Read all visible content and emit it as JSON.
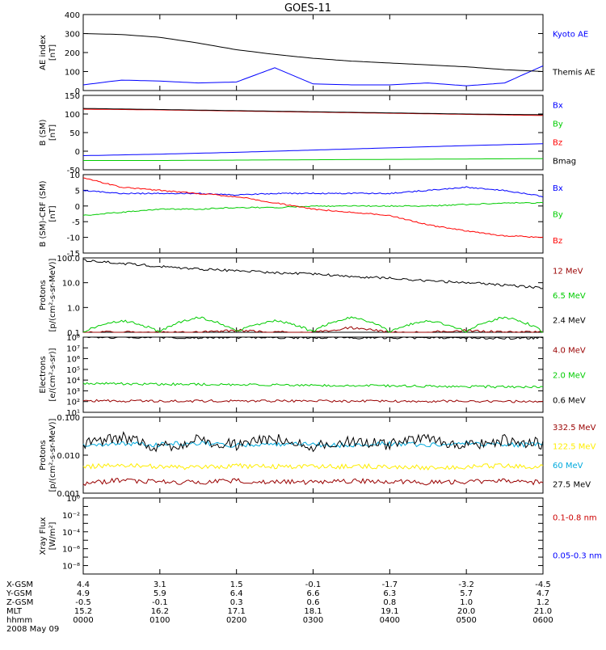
{
  "title": "GOES-11",
  "colors": {
    "black": "#000000",
    "blue": "#0000ff",
    "green": "#00cc00",
    "red": "#ff0000",
    "darkred": "#990000",
    "yellow": "#ffee00",
    "cyan": "#00aadd"
  },
  "chart_data": [
    {
      "type": "line",
      "id": "ae",
      "ylabel": [
        "AE index",
        "[nT]"
      ],
      "ylim": [
        0,
        400
      ],
      "yticks": [
        0,
        100,
        200,
        300,
        400
      ],
      "yscale": "linear",
      "x": [
        "0000",
        "0030",
        "0100",
        "0130",
        "0200",
        "0230",
        "0300",
        "0330",
        "0400",
        "0430",
        "0500",
        "0530",
        "0600"
      ],
      "series": [
        {
          "name": "Kyoto AE",
          "color": "#0000ff",
          "values": [
            30,
            55,
            50,
            40,
            45,
            120,
            35,
            30,
            30,
            40,
            25,
            40,
            130
          ]
        },
        {
          "name": "Themis AE",
          "color": "#000000",
          "values": [
            300,
            295,
            280,
            250,
            215,
            190,
            170,
            155,
            145,
            135,
            125,
            110,
            100
          ]
        }
      ]
    },
    {
      "type": "line",
      "id": "b",
      "ylabel": [
        "B (SM)",
        "[nT]"
      ],
      "ylim": [
        -50,
        150
      ],
      "yticks": [
        -50,
        0,
        50,
        100,
        150
      ],
      "yscale": "linear",
      "x": [
        "0000",
        "0100",
        "0200",
        "0300",
        "0400",
        "0500",
        "0600"
      ],
      "series": [
        {
          "name": "Bx",
          "color": "#0000ff",
          "values": [
            -12,
            -8,
            -3,
            3,
            9,
            15,
            20
          ]
        },
        {
          "name": "By",
          "color": "#00cc00",
          "values": [
            -25,
            -25,
            -24,
            -23,
            -22,
            -21,
            -20
          ]
        },
        {
          "name": "Bz",
          "color": "#ff0000",
          "values": [
            113,
            111,
            108,
            105,
            102,
            99,
            96
          ]
        },
        {
          "name": "Bmag",
          "color": "#000000",
          "values": [
            115,
            112,
            109,
            106,
            103,
            100,
            98
          ]
        }
      ]
    },
    {
      "type": "line",
      "id": "dbr",
      "ylabel": [
        "B (SM)-CRF (SM)",
        "[nT]"
      ],
      "ylim": [
        -15,
        10
      ],
      "yticks": [
        -15,
        -10,
        -5,
        0,
        5,
        10
      ],
      "yscale": "linear",
      "x": [
        "0000",
        "0030",
        "0100",
        "0130",
        "0200",
        "0230",
        "0300",
        "0330",
        "0400",
        "0430",
        "0500",
        "0530",
        "0600"
      ],
      "series": [
        {
          "name": "Bx",
          "color": "#0000ff",
          "values": [
            5,
            4,
            4,
            4,
            3.5,
            4,
            4,
            4,
            4,
            5,
            6,
            5,
            3
          ]
        },
        {
          "name": "By",
          "color": "#00cc00",
          "values": [
            -3,
            -2,
            -1,
            -1,
            -0.5,
            -0.5,
            0,
            0,
            0,
            0,
            0.5,
            1,
            1
          ]
        },
        {
          "name": "Bz",
          "color": "#ff0000",
          "values": [
            9,
            6,
            5,
            4,
            3,
            1,
            -1,
            -2,
            -3,
            -6,
            -8,
            -9.5,
            -10
          ]
        }
      ]
    },
    {
      "type": "line",
      "id": "protons1",
      "ylabel": [
        "Protons",
        "[p/(cm²-s-sr-MeV)]"
      ],
      "ylim": [
        0.1,
        100
      ],
      "yticks": [
        0.1,
        1.0,
        10.0,
        100.0
      ],
      "ytick_labels": [
        "0.1",
        "1.0",
        "10.0",
        "100.0"
      ],
      "yscale": "log",
      "x": [
        "0000",
        "0030",
        "0100",
        "0130",
        "0200",
        "0230",
        "0300",
        "0330",
        "0400",
        "0430",
        "0500",
        "0530",
        "0600"
      ],
      "series": [
        {
          "name": "12 MeV",
          "color": "#990000",
          "values": [
            0.1,
            0.1,
            0.1,
            0.1,
            0.12,
            0.1,
            0.1,
            0.15,
            0.1,
            0.1,
            0.12,
            0.1,
            0.1
          ]
        },
        {
          "name": "6.5 MeV",
          "color": "#00cc00",
          "values": [
            0.1,
            0.3,
            0.1,
            0.4,
            0.1,
            0.3,
            0.1,
            0.4,
            0.1,
            0.3,
            0.1,
            0.4,
            0.1
          ]
        },
        {
          "name": "2.4 MeV",
          "color": "#000000",
          "values": [
            80,
            60,
            45,
            35,
            30,
            25,
            22,
            18,
            15,
            12,
            10,
            8,
            6
          ]
        }
      ]
    },
    {
      "type": "line",
      "id": "electrons",
      "ylabel": [
        "Electrons",
        "[e/(cm²-s-sr)]"
      ],
      "ylim": [
        10,
        100000000
      ],
      "yticks": [
        10,
        100,
        1000,
        10000,
        100000,
        1000000,
        10000000,
        100000000
      ],
      "ytick_labels": [
        "10¹",
        "10²",
        "10³",
        "10⁴",
        "10⁵",
        "10⁶",
        "10⁷",
        "10⁸"
      ],
      "yscale": "log",
      "x": [
        "0000",
        "0100",
        "0200",
        "0300",
        "0400",
        "0500",
        "0600"
      ],
      "series": [
        {
          "name": "4.0 MeV",
          "color": "#990000",
          "values": [
            120,
            110,
            115,
            110,
            105,
            110,
            100
          ]
        },
        {
          "name": "2.0 MeV",
          "color": "#00cc00",
          "values": [
            5000,
            4200,
            3800,
            3300,
            2900,
            2500,
            2200
          ]
        },
        {
          "name": "0.6 MeV",
          "color": "#000000",
          "values": [
            100000000,
            95000000,
            92000000,
            90000000,
            88000000,
            85000000,
            80000000
          ]
        }
      ]
    },
    {
      "type": "line",
      "id": "protons2",
      "ylabel": [
        "Protons",
        "[p/(cm²-s-sr-MeV)]"
      ],
      "ylim": [
        0.001,
        0.1
      ],
      "yticks": [
        0.001,
        0.01,
        0.1
      ],
      "ytick_labels": [
        "0.001",
        "0.010",
        "0.100"
      ],
      "yscale": "log",
      "x": [
        "0000",
        "0030",
        "0100",
        "0130",
        "0200",
        "0230",
        "0300",
        "0330",
        "0400",
        "0430",
        "0500",
        "0530",
        "0600"
      ],
      "series": [
        {
          "name": "332.5 MeV",
          "color": "#990000",
          "values": [
            0.0018,
            0.0022,
            0.002,
            0.0019,
            0.0021,
            0.002,
            0.0019,
            0.0021,
            0.002,
            0.0019,
            0.002,
            0.0021,
            0.0019
          ]
        },
        {
          "name": "122.5 MeV",
          "color": "#ffee00",
          "values": [
            0.005,
            0.0055,
            0.005,
            0.0048,
            0.0052,
            0.005,
            0.0049,
            0.0051,
            0.005,
            0.0048,
            0.005,
            0.0052,
            0.0049
          ]
        },
        {
          "name": "60 MeV",
          "color": "#00aadd",
          "values": [
            0.018,
            0.02,
            0.019,
            0.021,
            0.018,
            0.02,
            0.019,
            0.018,
            0.02,
            0.019,
            0.021,
            0.018,
            0.02
          ]
        },
        {
          "name": "27.5 MeV",
          "color": "#000000",
          "values": [
            0.02,
            0.03,
            0.015,
            0.025,
            0.018,
            0.028,
            0.016,
            0.024,
            0.019,
            0.027,
            0.017,
            0.025,
            0.02
          ]
        }
      ]
    },
    {
      "type": "line",
      "id": "xray",
      "ylabel": [
        "Xray Flux",
        "[W/m²]"
      ],
      "ylim": [
        1e-09,
        1
      ],
      "yticks": [
        1e-09,
        1e-08,
        1e-07,
        1e-06,
        1e-05,
        0.0001,
        0.001,
        0.01,
        0.1,
        1
      ],
      "ytick_labels": [
        "",
        "10⁻⁸",
        "",
        "10⁻⁶",
        "",
        "10⁻⁴",
        "",
        "10⁻²",
        "",
        "10⁰"
      ],
      "yscale": "log",
      "x": [],
      "series": [
        {
          "name": "0.1-0.8 nm",
          "color": "#cc0000",
          "values": []
        },
        {
          "name": "0.05-0.3 nm",
          "color": "#0000ff",
          "values": []
        }
      ]
    }
  ],
  "xticks": [
    {
      "xgsm": "4.4",
      "ygsm": "4.9",
      "zgsm": "-0.5",
      "mlt": "15.2",
      "hhmm": "0000"
    },
    {
      "xgsm": "3.1",
      "ygsm": "5.9",
      "zgsm": "-0.1",
      "mlt": "16.2",
      "hhmm": "0100"
    },
    {
      "xgsm": "1.5",
      "ygsm": "6.4",
      "zgsm": "0.3",
      "mlt": "17.1",
      "hhmm": "0200"
    },
    {
      "xgsm": "-0.1",
      "ygsm": "6.6",
      "zgsm": "0.6",
      "mlt": "18.1",
      "hhmm": "0300"
    },
    {
      "xgsm": "-1.7",
      "ygsm": "6.3",
      "zgsm": "0.8",
      "mlt": "19.1",
      "hhmm": "0400"
    },
    {
      "xgsm": "-3.2",
      "ygsm": "5.7",
      "zgsm": "1.0",
      "mlt": "20.0",
      "hhmm": "0500"
    },
    {
      "xgsm": "-4.5",
      "ygsm": "4.7",
      "zgsm": "1.2",
      "mlt": "21.0",
      "hhmm": "0600"
    }
  ],
  "row_labels": [
    "X-GSM",
    "Y-GSM",
    "Z-GSM",
    "MLT",
    "hhmm"
  ],
  "date_label": "2008 May 09"
}
